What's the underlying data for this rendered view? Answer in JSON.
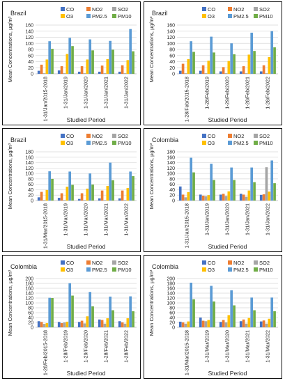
{
  "figure": {
    "series_names": [
      "CO",
      "NO2",
      "SO2",
      "O3",
      "PM2.5",
      "PM10"
    ],
    "series_colors": [
      "#4472C4",
      "#ED7D31",
      "#A5A5A5",
      "#FFC000",
      "#5B9BD5",
      "#70AD47"
    ],
    "ylabel": "Mean Concentrations, µg/m³",
    "xlabel": "Studied Period"
  },
  "chart_data": [
    {
      "type": "bar",
      "title": "Brazil",
      "categories": [
        "1-31/Jan/2015-2018",
        "1-31/Jan/2019",
        "1-31/Jan/2020",
        "1-31/Jan/2021",
        "1-31/Jan/2022"
      ],
      "series": [
        {
          "name": "CO",
          "values": [
            10,
            11,
            7,
            7,
            7
          ]
        },
        {
          "name": "NO2",
          "values": [
            30,
            25,
            25,
            27,
            28
          ]
        },
        {
          "name": "SO2",
          "values": [
            2,
            2,
            2,
            2,
            2
          ]
        },
        {
          "name": "O3",
          "values": [
            47,
            65,
            47,
            48,
            45
          ]
        },
        {
          "name": "PM2.5",
          "values": [
            107,
            118,
            113,
            108,
            147
          ]
        },
        {
          "name": "PM10",
          "values": [
            82,
            91,
            77,
            79,
            74
          ]
        }
      ],
      "xlabel": "Studied Period",
      "ylabel": "Mean Concentrations, µg/m³",
      "ylim": [
        0,
        160
      ],
      "yticks": [
        0,
        20,
        40,
        60,
        80,
        100,
        120,
        140,
        160
      ]
    },
    {
      "type": "bar",
      "title": "Brazil",
      "categories": [
        "1-28/Feb/2015-2018",
        "1-28/Feb/2019",
        "1-29/Feb/2020",
        "1-28/Feb/2021",
        "1-28/Feb/2022"
      ],
      "series": [
        {
          "name": "CO",
          "values": [
            10,
            10,
            8,
            8,
            8
          ]
        },
        {
          "name": "NO2",
          "values": [
            33,
            28,
            22,
            25,
            28
          ]
        },
        {
          "name": "SO2",
          "values": [
            2,
            2,
            2,
            2,
            2
          ]
        },
        {
          "name": "O3",
          "values": [
            48,
            43,
            42,
            63,
            55
          ]
        },
        {
          "name": "PM2.5",
          "values": [
            107,
            122,
            100,
            135,
            140
          ]
        },
        {
          "name": "PM10",
          "values": [
            72,
            70,
            64,
            75,
            87
          ]
        }
      ],
      "xlabel": "Studied Period",
      "ylabel": "Mean Concentrations, µg/m³",
      "ylim": [
        0,
        160
      ],
      "yticks": [
        0,
        20,
        40,
        60,
        80,
        100,
        120,
        140,
        160
      ]
    },
    {
      "type": "bar",
      "title": "Brazil",
      "categories": [
        "1-31/Mar/2015-2018",
        "1-31/Mar/2019",
        "1-31/Mar/2020",
        "1-31/Mar/2021",
        "1-31/Mar/2022"
      ],
      "series": [
        {
          "name": "CO",
          "values": [
            12,
            10,
            6,
            8,
            8
          ]
        },
        {
          "name": "NO2",
          "values": [
            32,
            27,
            27,
            37,
            37
          ]
        },
        {
          "name": "SO2",
          "values": [
            2,
            2,
            2,
            2,
            2
          ]
        },
        {
          "name": "O3",
          "values": [
            39,
            51,
            44,
            54,
            46
          ]
        },
        {
          "name": "PM2.5",
          "values": [
            108,
            107,
            100,
            140,
            107
          ]
        },
        {
          "name": "PM10",
          "values": [
            80,
            58,
            59,
            75,
            90
          ]
        }
      ],
      "xlabel": "Studied Period",
      "ylabel": "Mean Concentrations, µg/m³",
      "ylim": [
        0,
        180
      ],
      "yticks": [
        0,
        20,
        40,
        60,
        80,
        100,
        120,
        140,
        160,
        180
      ]
    },
    {
      "type": "bar",
      "title": "Colombia",
      "categories": [
        "1-31/Jan/2015-2018",
        "1-31/Jan/2019",
        "1-31/Jan/2020",
        "1-31/Jan/2021",
        "1-31/Jan/2022"
      ],
      "series": [
        {
          "name": "CO",
          "values": [
            52,
            22,
            22,
            25,
            21
          ]
        },
        {
          "name": "NO2",
          "values": [
            22,
            18,
            25,
            22,
            23
          ]
        },
        {
          "name": "SO2",
          "values": [
            12,
            16,
            17,
            14,
            123
          ]
        },
        {
          "name": "O3",
          "values": [
            31,
            20,
            34,
            37,
            33
          ]
        },
        {
          "name": "PM2.5",
          "values": [
            158,
            136,
            122,
            122,
            148
          ]
        },
        {
          "name": "PM10",
          "values": [
            104,
            76,
            76,
            68,
            64
          ]
        }
      ],
      "xlabel": "Studied Period",
      "ylabel": "Mean Concentrations, µg/m³",
      "ylim": [
        0,
        180
      ],
      "yticks": [
        0,
        20,
        40,
        60,
        80,
        100,
        120,
        140,
        160,
        180
      ]
    },
    {
      "type": "bar",
      "title": "Colombia",
      "categories": [
        "1-28/Feb/2015-2018",
        "1-28/Feb/2019",
        "1-29/Feb/2020",
        "1-28/Feb/2021",
        "1-28/Feb/2022"
      ],
      "series": [
        {
          "name": "CO",
          "values": [
            25,
            22,
            22,
            32,
            25
          ]
        },
        {
          "name": "NO2",
          "values": [
            22,
            17,
            27,
            30,
            20
          ]
        },
        {
          "name": "SO2",
          "values": [
            14,
            20,
            16,
            15,
            15
          ]
        },
        {
          "name": "O3",
          "values": [
            17,
            23,
            45,
            37,
            37
          ]
        },
        {
          "name": "PM2.5",
          "values": [
            121,
            181,
            145,
            126,
            127
          ]
        },
        {
          "name": "PM10",
          "values": [
            120,
            130,
            86,
            70,
            66
          ]
        }
      ],
      "xlabel": "Studied Period",
      "ylabel": "Mean Concentrations, µg/m³",
      "ylim": [
        0,
        200
      ],
      "yticks": [
        0,
        20,
        40,
        60,
        80,
        100,
        120,
        140,
        160,
        180,
        200
      ]
    },
    {
      "type": "bar",
      "title": "Colombia",
      "categories": [
        "1-31/Mar/2015-2018",
        "1-31/Mar/2019",
        "1-31/Mar/2020",
        "1-31/Mar/2021",
        "1-31/Mar/2022"
      ],
      "series": [
        {
          "name": "CO",
          "values": [
            23,
            40,
            22,
            25,
            24
          ]
        },
        {
          "name": "NO2",
          "values": [
            20,
            27,
            30,
            32,
            28
          ]
        },
        {
          "name": "SO2",
          "values": [
            15,
            25,
            20,
            15,
            15
          ]
        },
        {
          "name": "O3",
          "values": [
            24,
            30,
            50,
            38,
            35
          ]
        },
        {
          "name": "PM2.5",
          "values": [
            183,
            170,
            152,
            122,
            122
          ]
        },
        {
          "name": "PM10",
          "values": [
            115,
            106,
            90,
            70,
            66
          ]
        }
      ],
      "xlabel": "Studied Period",
      "ylabel": "Mean Concentrations, µg/m³",
      "ylim": [
        0,
        200
      ],
      "yticks": [
        0,
        20,
        40,
        60,
        80,
        100,
        120,
        140,
        160,
        180,
        200
      ]
    }
  ]
}
